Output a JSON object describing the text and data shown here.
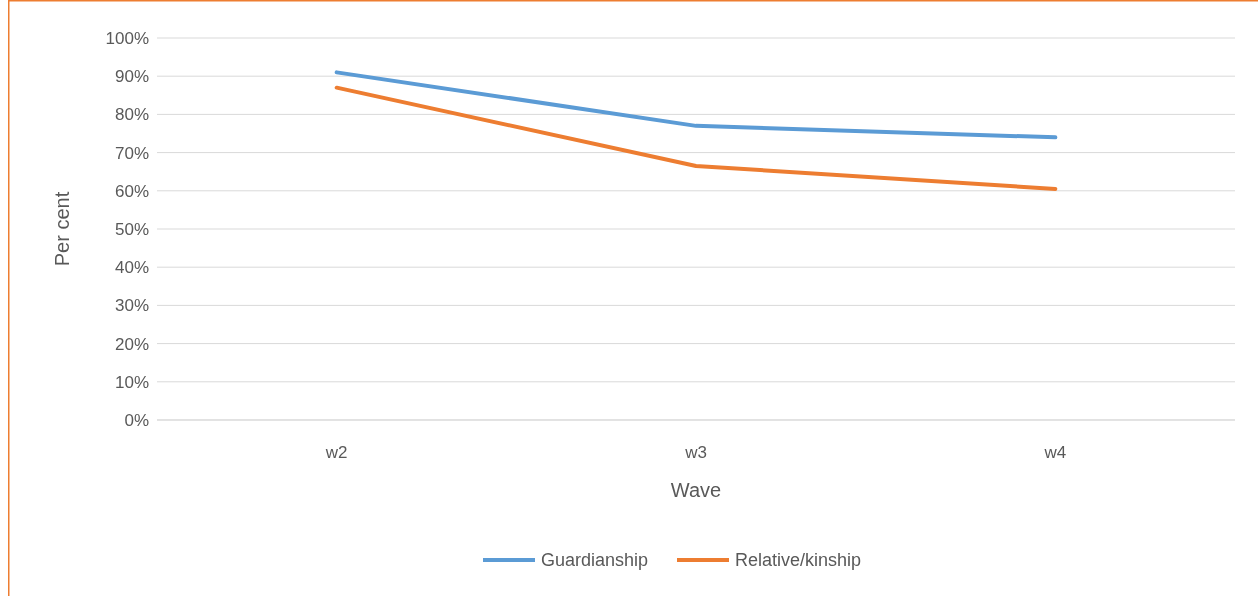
{
  "chart_data": {
    "type": "line",
    "xlabel": "Wave",
    "ylabel": "Per cent",
    "categories": [
      "w2",
      "w3",
      "w4"
    ],
    "series": [
      {
        "name": "Guardianship",
        "color": "#5b9bd5",
        "values": [
          91,
          77,
          74
        ]
      },
      {
        "name": "Relative/kinship",
        "color": "#ed7d31",
        "values": [
          87,
          66.5,
          60.5
        ]
      }
    ],
    "ylim": [
      0,
      100
    ],
    "yticks": [
      {
        "value": 0,
        "label": "0%"
      },
      {
        "value": 10,
        "label": "10%"
      },
      {
        "value": 20,
        "label": "20%"
      },
      {
        "value": 30,
        "label": "30%"
      },
      {
        "value": 40,
        "label": "40%"
      },
      {
        "value": 50,
        "label": "50%"
      },
      {
        "value": 60,
        "label": "60%"
      },
      {
        "value": 70,
        "label": "70%"
      },
      {
        "value": 80,
        "label": "80%"
      },
      {
        "value": 90,
        "label": "90%"
      },
      {
        "value": 100,
        "label": "100%"
      }
    ],
    "grid": "y",
    "legend": "bottom",
    "marker": "none",
    "line_style": "solid"
  }
}
